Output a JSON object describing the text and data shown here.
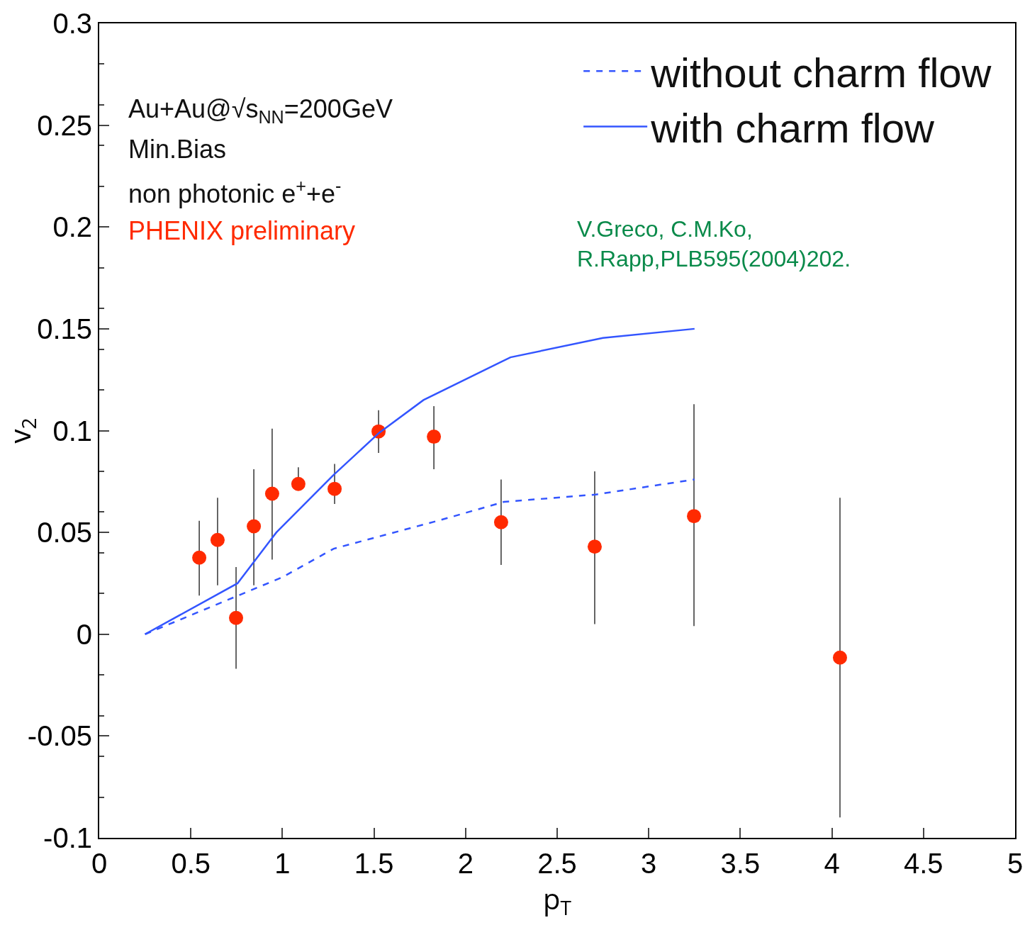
{
  "chart_data": {
    "type": "scatter",
    "xlabel": "p$_{T}$",
    "ylabel": "v$_{2}$",
    "xlim": [
      0,
      5
    ],
    "xticks": [
      0,
      0.5,
      1,
      1.5,
      2,
      2.5,
      3,
      3.5,
      4,
      4.5,
      5
    ],
    "ylim": [
      -0.1,
      0.3
    ],
    "yticks": [
      -0.1,
      -0.05,
      0,
      0.05,
      0.1,
      0.15,
      0.2,
      0.25,
      0.3
    ],
    "grid": false,
    "legend": "top right",
    "marker": "circle",
    "annotations": [
      "Au+Au@√s$_{NN}$=200GeV",
      "Min.Bias",
      "non photonic e$^{+}$+e$^{-}$",
      "PHENIX preliminary",
      "V.Greco, C.M.Ko,\nR.Rapp,PLB595(2004)202."
    ],
    "series": [
      {
        "color": "#ff2a00",
        "x": [
          0.546,
          0.646,
          0.747,
          0.844,
          0.944,
          1.087,
          1.285,
          1.525,
          1.827,
          2.194,
          2.705,
          3.247,
          4.044
        ],
        "values": [
          0.0376,
          0.0463,
          0.008,
          0.053,
          0.069,
          0.0738,
          0.0714,
          0.0996,
          0.097,
          0.055,
          0.043,
          0.058,
          -0.0115
        ],
        "errors": [
          [
            0.019,
            0.0557
          ],
          [
            0.024,
            0.067
          ],
          [
            -0.017,
            0.033
          ],
          [
            0.024,
            0.081
          ],
          [
            0.0366,
            0.101
          ],
          [
            0.071,
            0.082
          ],
          [
            0.064,
            0.0836
          ],
          [
            0.089,
            0.11
          ],
          [
            0.081,
            0.112
          ],
          [
            0.034,
            0.076
          ],
          [
            0.005,
            0.08
          ],
          [
            0.004,
            0.113
          ],
          [
            -0.09,
            0.067
          ]
        ]
      },
      {
        "type": "line",
        "name": "without charm flow",
        "color": "#3355ff",
        "line_style": "dashed",
        "marker": "none",
        "x": [
          0.25,
          1.0,
          1.28,
          1.86,
          2.21,
          2.71,
          3.25
        ],
        "values": [
          0,
          0.028,
          0.042,
          0.056,
          0.065,
          0.0686,
          0.076
        ]
      },
      {
        "type": "line",
        "name": "with charm flow",
        "color": "#3355ff",
        "line_style": "solid",
        "marker": "none",
        "x": [
          0.25,
          0.755,
          0.967,
          1.277,
          1.529,
          1.77,
          2.245,
          2.75,
          3.25
        ],
        "values": [
          0,
          0.025,
          0.05,
          0.078,
          0.099,
          0.115,
          0.136,
          0.1455,
          0.15
        ]
      }
    ]
  }
}
